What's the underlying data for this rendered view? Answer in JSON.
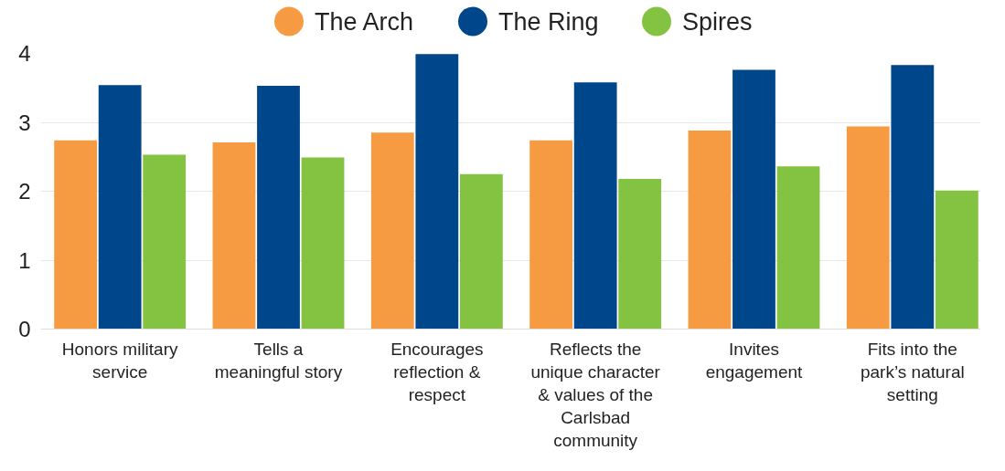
{
  "chart_data": {
    "type": "bar",
    "categories": [
      "Honors military service",
      "Tells a meaningful story",
      "Encourages reflection & respect",
      "Reflects the unique character & values of the Carlsbad community",
      "Invites engagement",
      "Fits into the park’s natural setting"
    ],
    "series": [
      {
        "name": "The Arch",
        "color": "#f79b42",
        "values": [
          2.74,
          2.71,
          2.85,
          2.74,
          2.88,
          2.94
        ]
      },
      {
        "name": "The Ring",
        "color": "#00468b",
        "values": [
          3.54,
          3.53,
          3.99,
          3.58,
          3.76,
          3.83
        ]
      },
      {
        "name": "Spires",
        "color": "#84c341",
        "values": [
          2.53,
          2.49,
          2.25,
          2.18,
          2.36,
          2.01
        ]
      }
    ],
    "ylim": [
      0,
      4
    ],
    "yticks": [
      0,
      1,
      2,
      3,
      4
    ],
    "grid": "y",
    "legend": "top"
  }
}
